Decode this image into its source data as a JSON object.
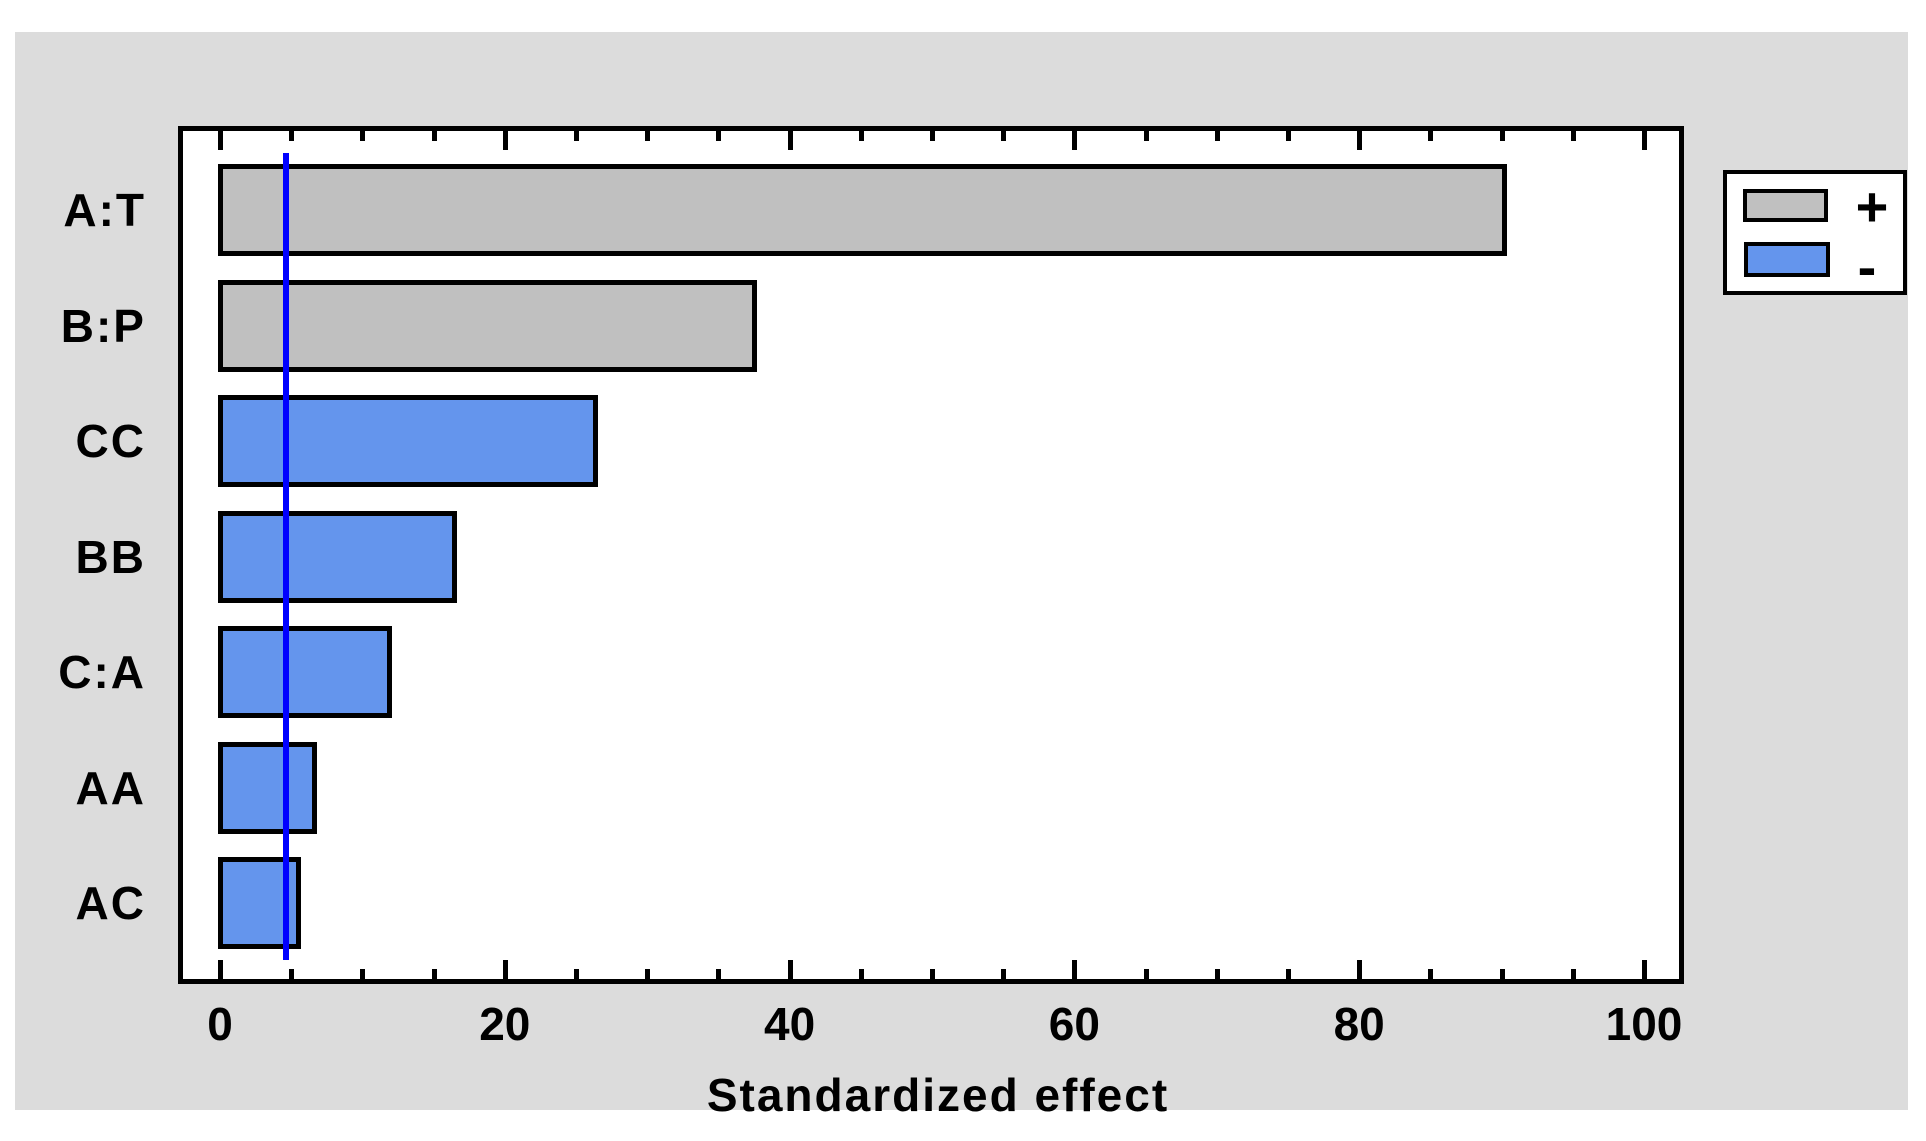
{
  "chart_data": {
    "type": "bar",
    "orientation": "horizontal",
    "xlabel": "Standardized effect",
    "categories": [
      "A:T",
      "B:P",
      "CC",
      "BB",
      "C:A",
      "AA",
      "AC"
    ],
    "values": [
      90.2,
      37.5,
      26.3,
      16.4,
      11.9,
      6.6,
      5.5
    ],
    "signs": [
      "+",
      "+",
      "-",
      "-",
      "-",
      "-",
      "-"
    ],
    "threshold_line": 4.6,
    "xlim": [
      -3,
      103
    ],
    "x_major_ticks": [
      0,
      20,
      40,
      60,
      80,
      100
    ],
    "x_major_tick_labels": [
      "0",
      "20",
      "40",
      "60",
      "80",
      "100"
    ],
    "x_minor_tick_step": 5,
    "grid": "off",
    "legend": {
      "position": "top-right",
      "entries": [
        {
          "label": "+",
          "color": "#C0C0C0"
        },
        {
          "label": "-",
          "color": "#6495ED"
        }
      ]
    },
    "colors": {
      "positive_bar": "#C0C0C0",
      "negative_bar": "#6495ED",
      "bar_border": "#000000",
      "threshold": "#0000FF",
      "plot_background": "#FFFFFF",
      "plot_border": "#000000",
      "panel_background": "#DCDCDC",
      "text": "#000000"
    }
  }
}
